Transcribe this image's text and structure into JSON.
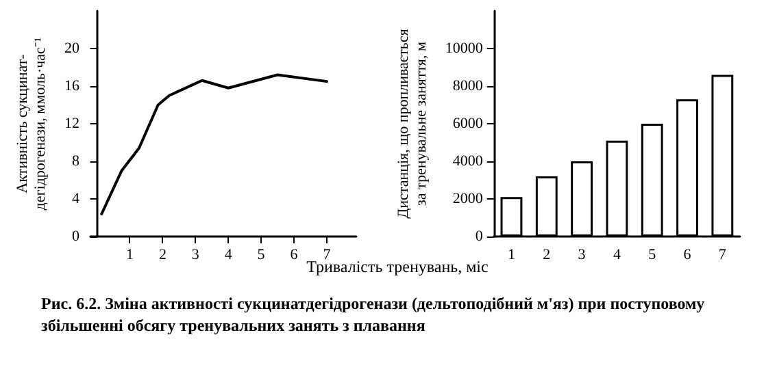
{
  "chart_data": [
    {
      "type": "line",
      "ylabel": "Активність сукцинат-\nдегідрогенази, ммоль·час⁻¹",
      "xlabel": "Тривалість тренувань, міс",
      "x": [
        0.14,
        0.75,
        1.28,
        1.86,
        2.2,
        3.2,
        4.0,
        5.5,
        7.0
      ],
      "series": [
        {
          "color": "#000000",
          "values": [
            2.4,
            7.0,
            9.4,
            14.0,
            15.0,
            16.6,
            15.8,
            17.2,
            16.5
          ]
        }
      ],
      "xlim": [
        -0.2,
        7.9
      ],
      "xticks": [
        1,
        2,
        3,
        4,
        5,
        6,
        7
      ],
      "ylim": [
        0,
        24
      ],
      "yticks": [
        0,
        4,
        8,
        12,
        16,
        20
      ],
      "grid": false,
      "marker": "none",
      "line_style": "solid",
      "annotations": [
        "Рис. 6.2. Зміна активності сукцинатдегідрогенази (дельтоподібний м'яз) при поступовому збільшенні обсягу тренувальних занять з плавання"
      ]
    },
    {
      "type": "bar",
      "ylabel": "Дистанція, що пропливається\nза тренувальне заняття, м",
      "categories": [
        "1",
        "2",
        "3",
        "4",
        "5",
        "6",
        "7"
      ],
      "series": [
        {
          "color": "#ffffff",
          "values": [
            2100,
            3200,
            4000,
            5100,
            6000,
            7300,
            8600
          ]
        }
      ],
      "ylim": [
        0,
        12000
      ],
      "yticks": [
        0,
        2000,
        4000,
        6000,
        8000,
        10000
      ],
      "grid": false
    }
  ]
}
